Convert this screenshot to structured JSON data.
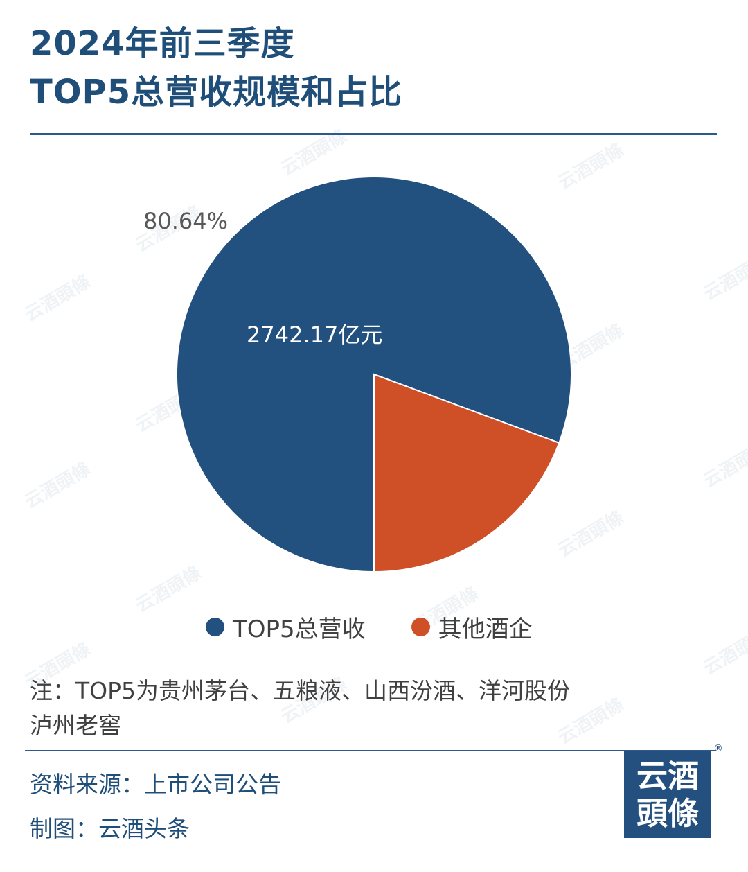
{
  "title": {
    "line1": "2024年前三季度",
    "line2": "TOP5总营收规模和占比"
  },
  "watermark_text": "云酒頭條",
  "chart_data": {
    "type": "pie",
    "series": [
      {
        "name": "TOP5总营收",
        "value": 80.64,
        "value_label": "2742.17亿元",
        "percent_label": "80.64%",
        "color": "#22507f"
      },
      {
        "name": "其他酒企",
        "value": 19.36,
        "color": "#cf4f27"
      }
    ],
    "legend_position": "bottom"
  },
  "note": {
    "line1": "注：TOP5为贵州茅台、五粮液、山西汾酒、洋河股份",
    "line2": "泸州老窖"
  },
  "source": {
    "data_source": "资料来源：上市公司公告",
    "made_by": "制图：云酒头条"
  },
  "logo": {
    "line1": "云酒",
    "line2": "頭條",
    "registered": "®"
  }
}
